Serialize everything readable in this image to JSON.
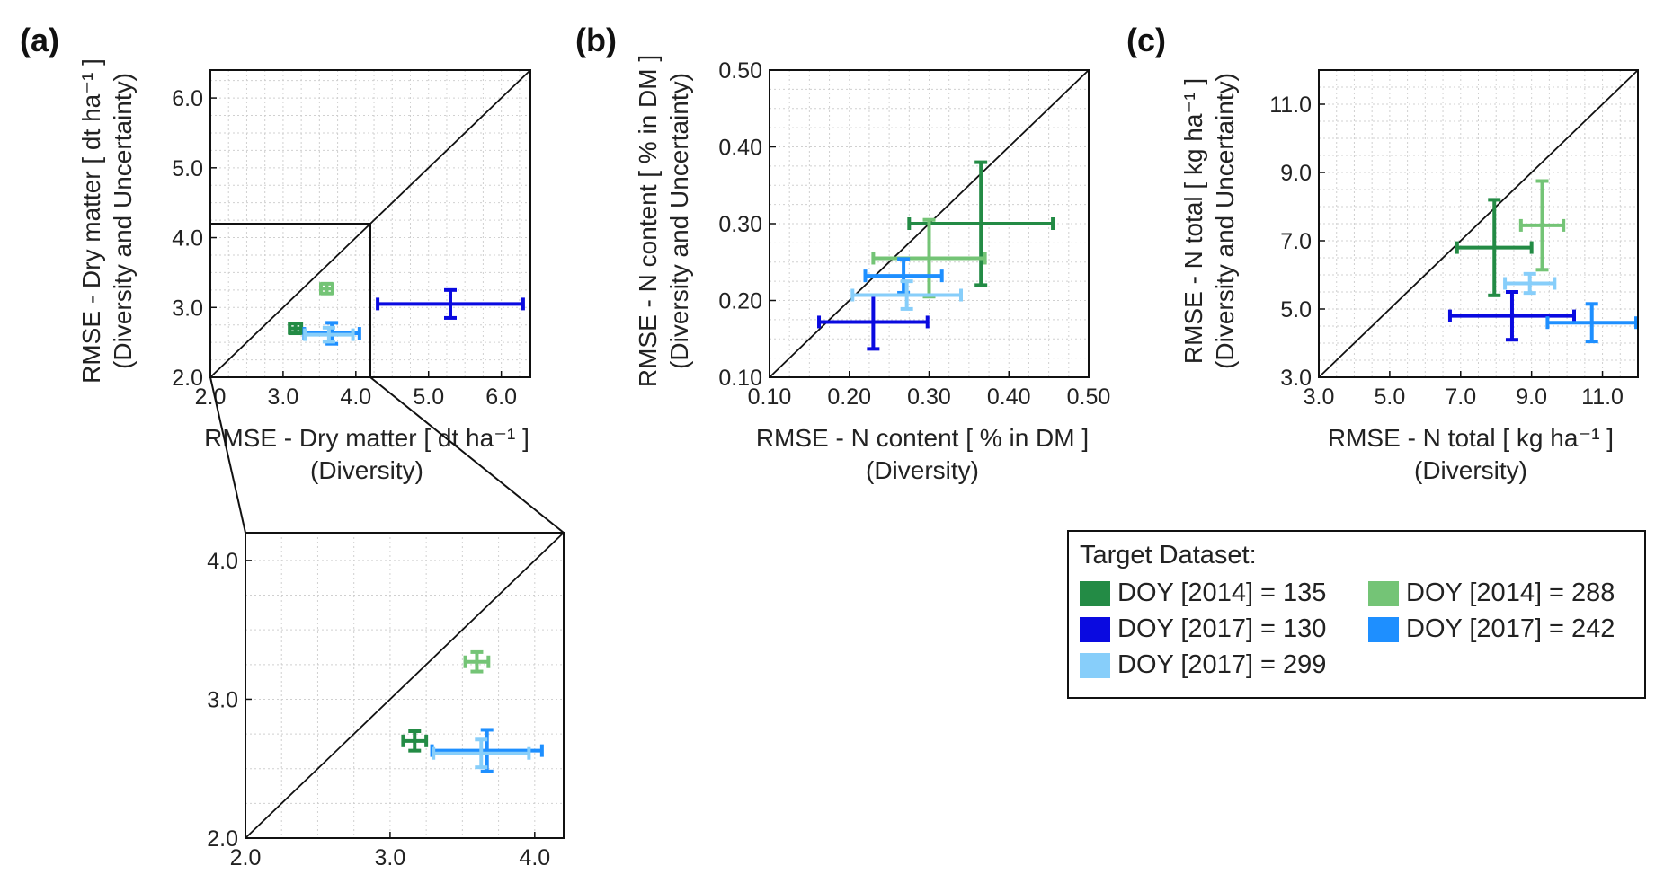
{
  "panel_labels": [
    "(a)",
    "(b)",
    "(c)"
  ],
  "legend": {
    "title": "Target Dataset:",
    "items": [
      {
        "label": "DOY [2014] = 135",
        "color": "#238b45"
      },
      {
        "label": "DOY [2014] = 288",
        "color": "#74c476"
      },
      {
        "label": "DOY [2017] = 130",
        "color": "#0a0ae0"
      },
      {
        "label": "DOY [2017] = 242",
        "color": "#1e8fff"
      },
      {
        "label": "DOY [2017] = 299",
        "color": "#87cefa"
      }
    ]
  },
  "chart_data": [
    {
      "type": "scatter",
      "id": "a",
      "xlabel": "RMSE - Dry matter [ dt ha⁻¹ ]",
      "xlabel2": "(Diversity)",
      "ylabel": "RMSE - Dry matter [ dt ha⁻¹ ]",
      "ylabel2": "(Diversity and Uncertainty)",
      "xlim": [
        2.0,
        6.4
      ],
      "ylim": [
        2.0,
        6.4
      ],
      "ticks": [
        "2.0",
        "3.0",
        "4.0",
        "5.0",
        "6.0"
      ],
      "grid": true,
      "series": [
        {
          "label": "DOY [2014] = 135",
          "color": "#238b45",
          "x": 3.17,
          "y": 2.7,
          "xerr": 0.08,
          "yerr": 0.07
        },
        {
          "label": "DOY [2014] = 288",
          "color": "#74c476",
          "x": 3.6,
          "y": 3.27,
          "xerr": 0.08,
          "yerr": 0.07
        },
        {
          "label": "DOY [2017] = 130",
          "color": "#0a0ae0",
          "x": 5.3,
          "y": 3.05,
          "xerr": 1.0,
          "yerr": 0.2
        },
        {
          "label": "DOY [2017] = 242",
          "color": "#1e8fff",
          "x": 3.67,
          "y": 2.63,
          "xerr": 0.38,
          "yerr": 0.15
        },
        {
          "label": "DOY [2017] = 299",
          "color": "#87cefa",
          "x": 3.63,
          "y": 2.61,
          "xerr": 0.33,
          "yerr": 0.1
        }
      ]
    },
    {
      "type": "scatter",
      "id": "a-inset",
      "xlim": [
        2.0,
        4.2
      ],
      "ylim": [
        2.0,
        4.2
      ],
      "ticks": [
        "2.0",
        "3.0",
        "4.0"
      ],
      "grid": true,
      "series": [
        {
          "label": "DOY [2014] = 135",
          "color": "#238b45",
          "x": 3.17,
          "y": 2.7,
          "xerr": 0.08,
          "yerr": 0.07
        },
        {
          "label": "DOY [2014] = 288",
          "color": "#74c476",
          "x": 3.6,
          "y": 3.27,
          "xerr": 0.08,
          "yerr": 0.07
        },
        {
          "label": "DOY [2017] = 242",
          "color": "#1e8fff",
          "x": 3.67,
          "y": 2.63,
          "xerr": 0.38,
          "yerr": 0.15
        },
        {
          "label": "DOY [2017] = 299",
          "color": "#87cefa",
          "x": 3.63,
          "y": 2.61,
          "xerr": 0.33,
          "yerr": 0.1
        }
      ]
    },
    {
      "type": "scatter",
      "id": "b",
      "xlabel": "RMSE - N content [ % in DM ]",
      "xlabel2": "(Diversity)",
      "ylabel": "RMSE - N content [ % in DM ]",
      "ylabel2": "(Diversity and Uncertainty)",
      "xlim": [
        0.1,
        0.5
      ],
      "ylim": [
        0.1,
        0.5
      ],
      "ticks": [
        "0.10",
        "0.20",
        "0.30",
        "0.40",
        "0.50"
      ],
      "grid": true,
      "series": [
        {
          "label": "DOY [2014] = 135",
          "color": "#238b45",
          "x": 0.365,
          "y": 0.3,
          "xerr": 0.09,
          "yerr": 0.08
        },
        {
          "label": "DOY [2014] = 288",
          "color": "#74c476",
          "x": 0.3,
          "y": 0.255,
          "xerr": 0.07,
          "yerr": 0.05
        },
        {
          "label": "DOY [2017] = 130",
          "color": "#0a0ae0",
          "x": 0.23,
          "y": 0.172,
          "xerr": 0.068,
          "yerr": 0.035
        },
        {
          "label": "DOY [2017] = 242",
          "color": "#1e8fff",
          "x": 0.268,
          "y": 0.232,
          "xerr": 0.048,
          "yerr": 0.022
        },
        {
          "label": "DOY [2017] = 299",
          "color": "#87cefa",
          "x": 0.272,
          "y": 0.207,
          "xerr": 0.068,
          "yerr": 0.018
        }
      ]
    },
    {
      "type": "scatter",
      "id": "c",
      "xlabel": "RMSE - N total [ kg ha⁻¹ ]",
      "xlabel2": "(Diversity)",
      "ylabel": "RMSE - N total [ kg ha⁻¹ ]",
      "ylabel2": "(Diversity and Uncertainty)",
      "xlim": [
        3.0,
        12.0
      ],
      "ylim": [
        3.0,
        12.0
      ],
      "ticks": [
        "3.0",
        "5.0",
        "7.0",
        "9.0",
        "11.0"
      ],
      "grid": true,
      "series": [
        {
          "label": "DOY [2014] = 135",
          "color": "#238b45",
          "x": 7.95,
          "y": 6.8,
          "xerr": 1.05,
          "yerr": 1.4
        },
        {
          "label": "DOY [2014] = 288",
          "color": "#74c476",
          "x": 9.3,
          "y": 7.45,
          "xerr": 0.6,
          "yerr": 1.3
        },
        {
          "label": "DOY [2017] = 130",
          "color": "#0a0ae0",
          "x": 8.45,
          "y": 4.8,
          "xerr": 1.75,
          "yerr": 0.7
        },
        {
          "label": "DOY [2017] = 242",
          "color": "#1e8fff",
          "x": 10.7,
          "y": 4.6,
          "xerr": 1.25,
          "yerr": 0.55
        },
        {
          "label": "DOY [2017] = 299",
          "color": "#87cefa",
          "x": 8.95,
          "y": 5.75,
          "xerr": 0.7,
          "yerr": 0.28
        }
      ]
    }
  ]
}
